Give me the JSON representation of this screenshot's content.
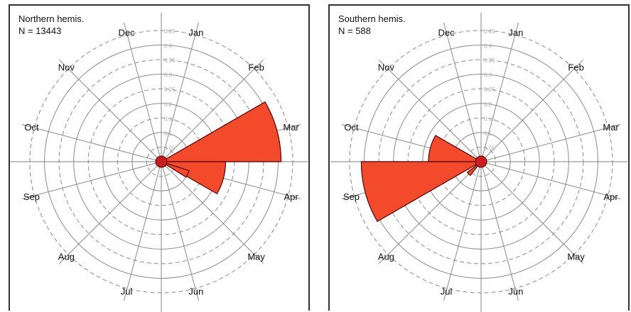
{
  "chart_data": [
    {
      "type": "polar-bar",
      "title": "Northern hemis.",
      "subtitle": "N = 13443",
      "months": [
        "Jan",
        "Feb",
        "Mar",
        "Apr",
        "May",
        "Jun",
        "Jul",
        "Aug",
        "Sep",
        "Oct",
        "Nov",
        "Dec"
      ],
      "radial_ticks": [
        "0.05",
        "0.1",
        "0.15",
        "0.2",
        "0.25",
        "0.3",
        "0.35",
        "0.4",
        "0.45"
      ],
      "radial_max": 0.45,
      "values": [
        0.008,
        0.01,
        0.41,
        0.22,
        0.01,
        0.006,
        0.006,
        0.006,
        0.007,
        0.008,
        0.009,
        0.008
      ],
      "sub_values": [
        {
          "angle_deg": 115,
          "value": 0.1
        },
        {
          "angle_deg": 135,
          "value": 0.02
        }
      ],
      "bar_color": "#f24a2a",
      "grid": true
    },
    {
      "type": "polar-bar",
      "title": "Southern hemis.",
      "subtitle": "N = 588",
      "months": [
        "Jan",
        "Feb",
        "Mar",
        "Apr",
        "May",
        "Jun",
        "Jul",
        "Aug",
        "Sep",
        "Oct",
        "Nov",
        "Dec"
      ],
      "radial_ticks": [
        "0.05",
        "0.1",
        "0.15",
        "0.2",
        "0.25",
        "0.3",
        "0.35",
        "0.4",
        "0.45"
      ],
      "radial_max": 0.45,
      "values": [
        0.012,
        0.01,
        0.01,
        0.01,
        0.008,
        0.008,
        0.008,
        0.01,
        0.41,
        0.18,
        0.01,
        0.012
      ],
      "sub_values": [
        {
          "angle_deg": 225,
          "value": 0.06
        }
      ],
      "bar_color": "#f24a2a",
      "grid": true
    }
  ]
}
